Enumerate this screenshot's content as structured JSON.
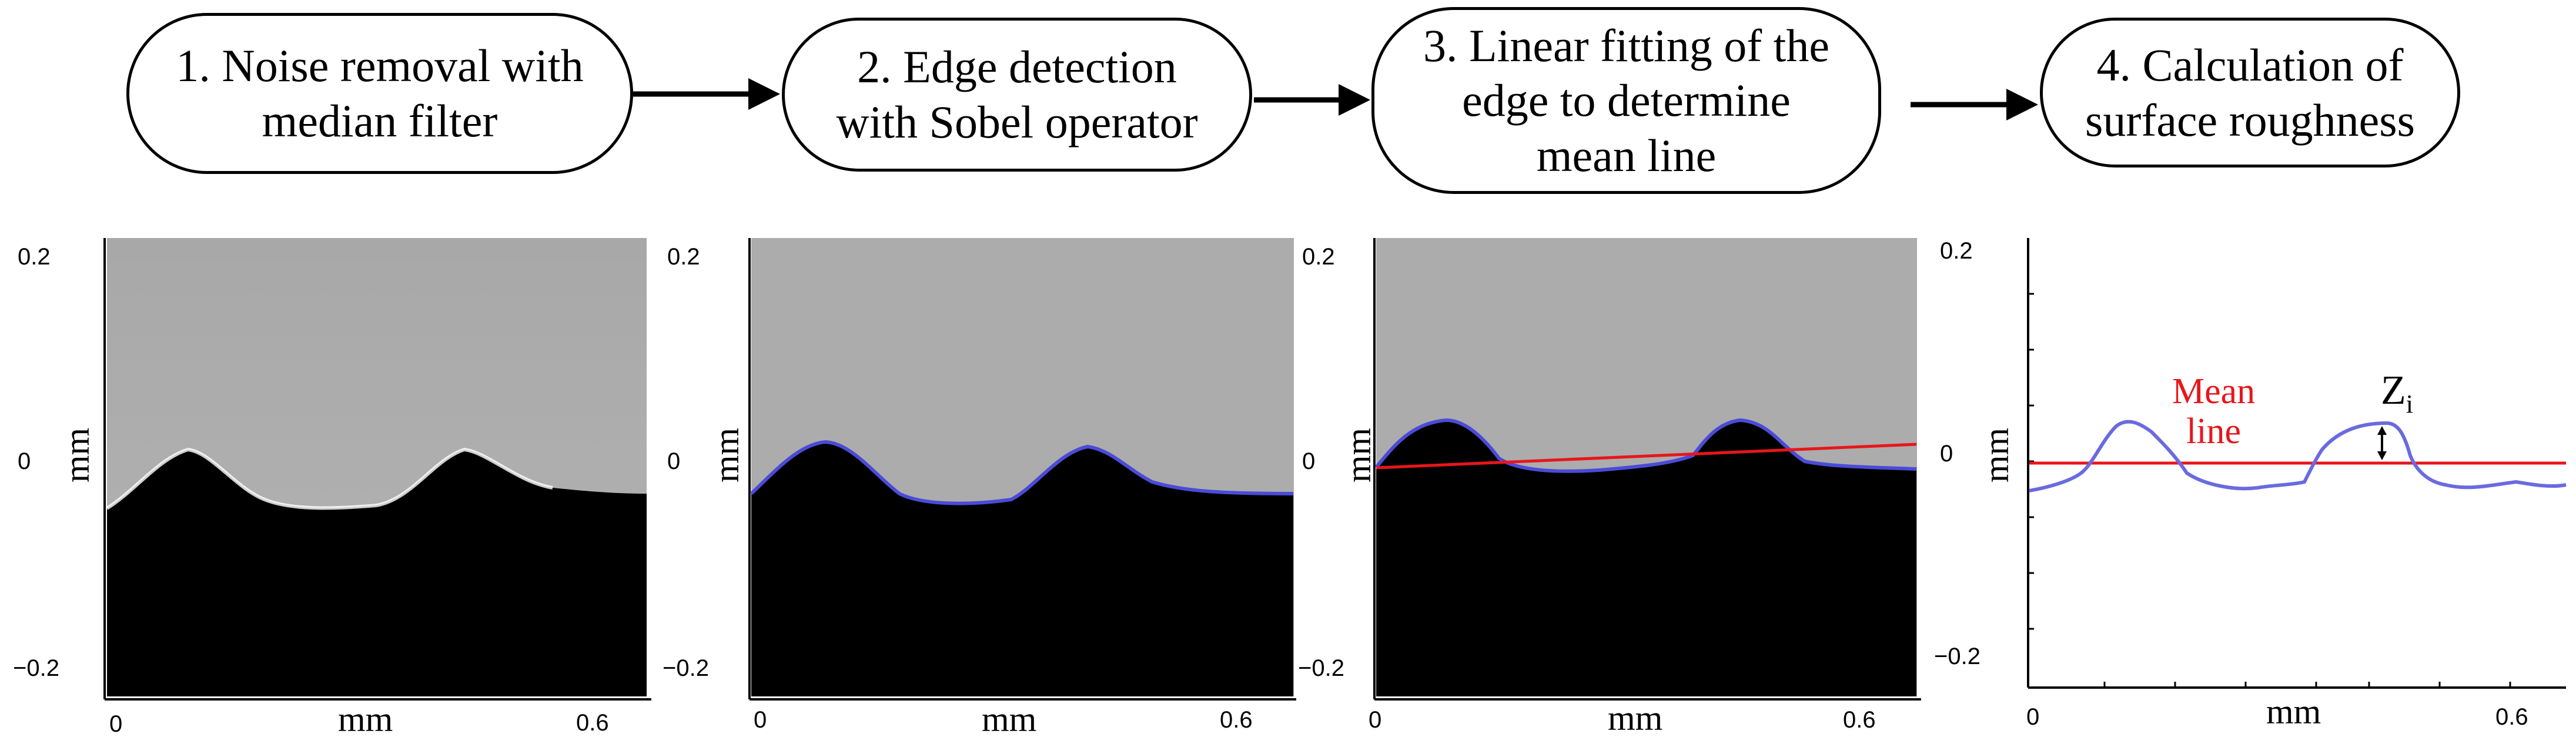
{
  "steps": [
    {
      "label": "1. Noise removal with\nmedian filter"
    },
    {
      "label": "2. Edge detection\nwith Sobel operator"
    },
    {
      "label": "3. Linear fitting of the\nedge to determine\nmean line"
    },
    {
      "label": "4. Calculation of\nsurface roughness"
    }
  ],
  "axes": {
    "x_unit": "mm",
    "y_unit": "mm",
    "x_ticks": [
      "0",
      "0.6"
    ],
    "y_ticks": [
      "0.2",
      "0",
      "−0.2"
    ]
  },
  "panels": [
    {
      "name": "noise-removed-image"
    },
    {
      "name": "edge-detected-image"
    },
    {
      "name": "linear-fit-image"
    },
    {
      "name": "roughness-profile"
    }
  ],
  "annotations": {
    "mean_line_label": "Mean\nline",
    "zi_label": "Z",
    "zi_subscript": "i"
  },
  "colors": {
    "edge_line": "#4b4bd8",
    "mean_line": "#e8161b",
    "profile_line": "#6a6ae0",
    "background_gray": "#a9a9a9",
    "material_black": "#000000"
  },
  "icons": [
    "arrow-right-icon",
    "double-arrow-icon"
  ]
}
